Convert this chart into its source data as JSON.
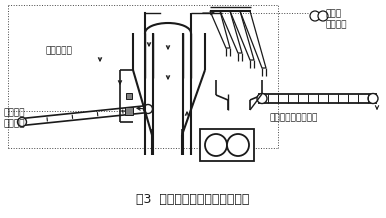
{
  "title": "图3  辊压机生料终粉磨工艺流程",
  "label_peiliao": "来自配料站",
  "label_gaowenfengji": "来自窑尾\n高温风机",
  "label_feiqichu": "至窑尾\n废气处理",
  "label_tishenji": "入生料均化库提升机",
  "bg_color": "#ffffff",
  "line_color": "#1a1a1a",
  "dot_color": "#444444",
  "title_fontsize": 9,
  "label_fontsize": 6.5
}
